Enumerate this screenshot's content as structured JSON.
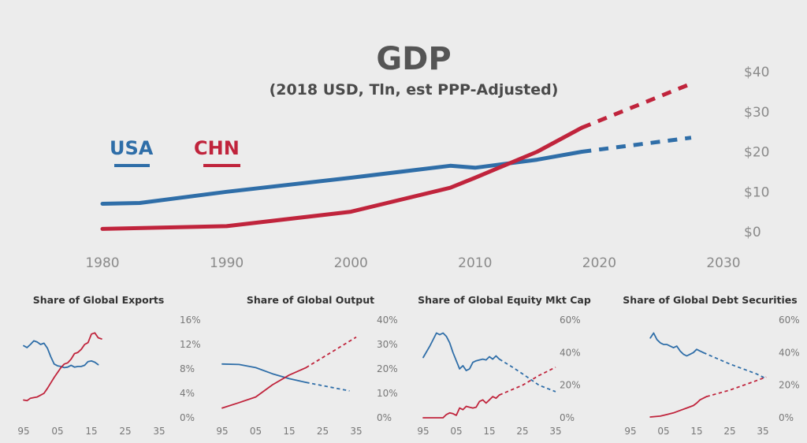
{
  "colors": {
    "usa": "#2f6ea8",
    "chn": "#c0243c",
    "axis_text": "#8a8a8a",
    "background": "#ececec"
  },
  "main": {
    "title": "GDP",
    "subtitle": "(2018 USD, Tln, est PPP-Adjusted)",
    "legend": [
      {
        "label": "USA",
        "color": "#2f6ea8"
      },
      {
        "label": "CHN",
        "color": "#c0243c"
      }
    ]
  },
  "chart_data": [
    {
      "type": "line",
      "title": "GDP",
      "subtitle": "(2018 USD, Tln, est PPP-Adjusted)",
      "x_ticks": [
        "1980",
        "1990",
        "2000",
        "2010",
        "2020",
        "2030"
      ],
      "y_ticks": [
        "$0",
        "$10",
        "$20",
        "$30",
        "$40"
      ],
      "xlim": [
        1980,
        2030
      ],
      "ylim": [
        0,
        40
      ],
      "y_axis_side": "right",
      "legend_position": "left",
      "series": [
        {
          "name": "USA",
          "color": "#2f6ea8",
          "points": [
            [
              1980,
              7
            ],
            [
              1983,
              7.2
            ],
            [
              1990,
              10
            ],
            [
              2000,
              13.5
            ],
            [
              2008,
              16.5
            ],
            [
              2010,
              16
            ],
            [
              2015,
              18
            ],
            [
              2018.6,
              20
            ]
          ],
          "projection": [
            [
              2018.6,
              20
            ],
            [
              2027.4,
              23.5
            ]
          ]
        },
        {
          "name": "CHN",
          "color": "#c0243c",
          "points": [
            [
              1980,
              0.7
            ],
            [
              1990,
              1.4
            ],
            [
              2000,
              5
            ],
            [
              2008,
              11
            ],
            [
              2010,
              13.5
            ],
            [
              2015,
              20
            ],
            [
              2018.6,
              26
            ]
          ],
          "projection": [
            [
              2018.6,
              26
            ],
            [
              2027.4,
              37
            ]
          ]
        }
      ]
    },
    {
      "type": "line",
      "title": "Share of Global Exports",
      "x_ticks": [
        "95",
        "05",
        "15",
        "25",
        "35"
      ],
      "y_ticks": [
        "0%",
        "4%",
        "8%",
        "12%",
        "16%"
      ],
      "xlim": [
        95,
        135
      ],
      "ylim": [
        0,
        16
      ],
      "series": [
        {
          "name": "USA",
          "color": "#2f6ea8",
          "points": [
            [
              95,
              11.8
            ],
            [
              96,
              11.5
            ],
            [
              97,
              12
            ],
            [
              98,
              12.6
            ],
            [
              99,
              12.4
            ],
            [
              100,
              12
            ],
            [
              101,
              12.2
            ],
            [
              102,
              11.4
            ],
            [
              103,
              10
            ],
            [
              104,
              8.8
            ],
            [
              105,
              8.5
            ],
            [
              106,
              8.4
            ],
            [
              107,
              8.2
            ],
            [
              108,
              8.3
            ],
            [
              109,
              8.6
            ],
            [
              110,
              8.3
            ],
            [
              111,
              8.4
            ],
            [
              112,
              8.4
            ],
            [
              113,
              8.6
            ],
            [
              114,
              9.2
            ],
            [
              115,
              9.3
            ],
            [
              116,
              9.1
            ],
            [
              117,
              8.7
            ]
          ],
          "projection": []
        },
        {
          "name": "CHN",
          "color": "#c0243c",
          "points": [
            [
              95,
              2.9
            ],
            [
              96,
              2.8
            ],
            [
              97,
              3.2
            ],
            [
              98,
              3.3
            ],
            [
              99,
              3.4
            ],
            [
              100,
              3.7
            ],
            [
              101,
              4
            ],
            [
              102,
              4.8
            ],
            [
              103,
              5.7
            ],
            [
              104,
              6.6
            ],
            [
              105,
              7.4
            ],
            [
              106,
              8.2
            ],
            [
              107,
              8.8
            ],
            [
              108,
              9
            ],
            [
              109,
              9.6
            ],
            [
              110,
              10.5
            ],
            [
              111,
              10.7
            ],
            [
              112,
              11.2
            ],
            [
              113,
              12
            ],
            [
              114,
              12.3
            ],
            [
              115,
              13.7
            ],
            [
              116,
              13.9
            ],
            [
              117,
              13.1
            ],
            [
              118,
              12.9
            ]
          ],
          "projection": []
        }
      ]
    },
    {
      "type": "line",
      "title": "Share of Global Output",
      "x_ticks": [
        "95",
        "05",
        "15",
        "25",
        "35"
      ],
      "y_ticks": [
        "0%",
        "10%",
        "20%",
        "30%",
        "40%"
      ],
      "xlim": [
        95,
        135
      ],
      "ylim": [
        0,
        40
      ],
      "series": [
        {
          "name": "USA",
          "color": "#2f6ea8",
          "points": [
            [
              95,
              22
            ],
            [
              100,
              21.8
            ],
            [
              105,
              20.5
            ],
            [
              110,
              18
            ],
            [
              115,
              16
            ],
            [
              120,
              14.5
            ]
          ],
          "projection": [
            [
              120,
              14.5
            ],
            [
              133,
              11
            ]
          ]
        },
        {
          "name": "CHN",
          "color": "#c0243c",
          "points": [
            [
              95,
              4
            ],
            [
              100,
              6.2
            ],
            [
              105,
              8.5
            ],
            [
              110,
              13.5
            ],
            [
              115,
              17.5
            ],
            [
              120,
              20.5
            ]
          ],
          "projection": [
            [
              120,
              20.5
            ],
            [
              135,
              33
            ]
          ]
        }
      ]
    },
    {
      "type": "line",
      "title": "Share of Global Equity Mkt Cap",
      "x_ticks": [
        "95",
        "05",
        "15",
        "25",
        "35"
      ],
      "y_ticks": [
        "0%",
        "20%",
        "40%",
        "60%"
      ],
      "xlim": [
        95,
        135
      ],
      "ylim": [
        0,
        60
      ],
      "series": [
        {
          "name": "USA",
          "color": "#2f6ea8",
          "points": [
            [
              95,
              37
            ],
            [
              97,
              44
            ],
            [
              99,
              52
            ],
            [
              100,
              51
            ],
            [
              101,
              52
            ],
            [
              102,
              50
            ],
            [
              103,
              46
            ],
            [
              104,
              40
            ],
            [
              105,
              35
            ],
            [
              106,
              30
            ],
            [
              107,
              32
            ],
            [
              108,
              29
            ],
            [
              109,
              30
            ],
            [
              110,
              34
            ],
            [
              111,
              35
            ],
            [
              112,
              35.5
            ],
            [
              113,
              36
            ],
            [
              114,
              35.5
            ],
            [
              115,
              37.5
            ],
            [
              116,
              36
            ],
            [
              117,
              38
            ],
            [
              118,
              36
            ]
          ],
          "projection": [
            [
              118,
              36
            ],
            [
              122,
              31
            ],
            [
              125,
              27
            ],
            [
              130,
              20
            ],
            [
              135,
              16
            ]
          ]
        },
        {
          "name": "CHN",
          "color": "#c0243c",
          "points": [
            [
              95,
              0
            ],
            [
              98,
              0
            ],
            [
              101,
              0
            ],
            [
              102,
              2
            ],
            [
              103,
              3
            ],
            [
              104,
              2.5
            ],
            [
              105,
              1.5
            ],
            [
              106,
              6
            ],
            [
              107,
              5
            ],
            [
              108,
              7
            ],
            [
              109,
              6.5
            ],
            [
              110,
              6
            ],
            [
              111,
              6.5
            ],
            [
              112,
              10
            ],
            [
              113,
              11
            ],
            [
              114,
              9
            ],
            [
              115,
              11
            ],
            [
              116,
              13
            ],
            [
              117,
              12
            ],
            [
              118,
              14
            ]
          ],
          "projection": [
            [
              118,
              14
            ],
            [
              125,
              20
            ],
            [
              130,
              26
            ],
            [
              135,
              31
            ]
          ]
        }
      ]
    },
    {
      "type": "line",
      "title": "Share of Global Debt Securities",
      "x_ticks": [
        "95",
        "05",
        "15",
        "25",
        "35"
      ],
      "y_ticks": [
        "0%",
        "20%",
        "40%",
        "60%"
      ],
      "xlim": [
        95,
        135
      ],
      "ylim": [
        0,
        60
      ],
      "series": [
        {
          "name": "USA",
          "color": "#2f6ea8",
          "points": [
            [
              101,
              49
            ],
            [
              102,
              52
            ],
            [
              103,
              48
            ],
            [
              104,
              46
            ],
            [
              105,
              45
            ],
            [
              106,
              45
            ],
            [
              107,
              44
            ],
            [
              108,
              43
            ],
            [
              109,
              44
            ],
            [
              110,
              41
            ],
            [
              111,
              39
            ],
            [
              112,
              38
            ],
            [
              113,
              39
            ],
            [
              114,
              40
            ],
            [
              115,
              42
            ],
            [
              116,
              41
            ],
            [
              117,
              40
            ]
          ],
          "projection": [
            [
              117,
              40
            ],
            [
              125,
              33
            ],
            [
              133,
              27
            ],
            [
              136,
              24
            ]
          ]
        },
        {
          "name": "CHN",
          "color": "#c0243c",
          "points": [
            [
              101,
              0.5
            ],
            [
              104,
              1
            ],
            [
              106,
              2
            ],
            [
              108,
              3
            ],
            [
              110,
              4.5
            ],
            [
              112,
              6
            ],
            [
              114,
              7.5
            ],
            [
              115,
              9
            ],
            [
              116,
              11
            ],
            [
              117,
              12
            ],
            [
              118,
              13
            ]
          ],
          "projection": [
            [
              118,
              13
            ],
            [
              125,
              17
            ],
            [
              132,
              22
            ],
            [
              136,
              25
            ]
          ]
        }
      ]
    }
  ]
}
